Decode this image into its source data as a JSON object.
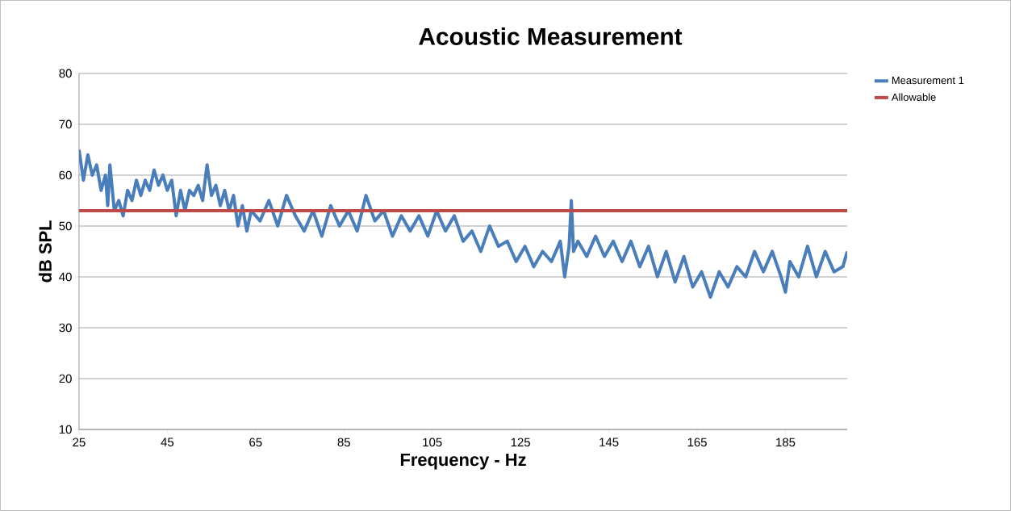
{
  "chart_data": {
    "type": "line",
    "title": "Acoustic Measurement",
    "xlabel": "Frequency - Hz",
    "ylabel": "dB SPL",
    "xlim": [
      25,
      199
    ],
    "xticks": [
      25,
      45,
      65,
      85,
      105,
      125,
      145,
      165,
      185
    ],
    "ylim": [
      10,
      80
    ],
    "yticks": [
      10,
      20,
      30,
      40,
      50,
      60,
      70,
      80
    ],
    "grid": "y",
    "legend": "top right",
    "marker": "none",
    "line_style": "solid",
    "series": [
      {
        "name": "Measurement 1",
        "color": "#4a7ebb",
        "x": [
          25,
          26,
          27,
          28,
          29,
          30,
          31,
          31.5,
          32,
          33,
          34,
          35,
          36,
          37,
          38,
          39,
          40,
          41,
          42,
          43,
          44,
          45,
          46,
          47,
          48,
          49,
          50,
          51,
          52,
          53,
          54,
          55,
          56,
          57,
          58,
          59,
          60,
          61,
          62,
          63,
          64,
          66,
          68,
          70,
          72,
          74,
          76,
          78,
          80,
          82,
          84,
          86,
          88,
          90,
          92,
          94,
          96,
          98,
          100,
          102,
          104,
          106,
          108,
          110,
          112,
          114,
          116,
          118,
          120,
          122,
          124,
          126,
          128,
          130,
          132,
          134,
          135,
          136,
          136.5,
          137,
          138,
          140,
          142,
          144,
          146,
          148,
          150,
          152,
          154,
          156,
          158,
          160,
          162,
          164,
          166,
          168,
          170,
          172,
          174,
          176,
          178,
          180,
          182,
          184,
          185,
          186,
          188,
          190,
          192,
          194,
          196,
          198,
          199
        ],
        "values": [
          65,
          59,
          64,
          60,
          62,
          57,
          60,
          54,
          62,
          53,
          55,
          52,
          57,
          55,
          59,
          56,
          59,
          57,
          61,
          58,
          60,
          57,
          59,
          52,
          57,
          53,
          57,
          56,
          58,
          55,
          62,
          56,
          58,
          54,
          57,
          53,
          56,
          50,
          54,
          49,
          53,
          51,
          55,
          50,
          56,
          52,
          49,
          53,
          48,
          54,
          50,
          53,
          49,
          56,
          51,
          53,
          48,
          52,
          49,
          52,
          48,
          53,
          49,
          52,
          47,
          49,
          45,
          50,
          46,
          47,
          43,
          46,
          42,
          45,
          43,
          47,
          40,
          46,
          55,
          45,
          47,
          44,
          48,
          44,
          47,
          43,
          47,
          42,
          46,
          40,
          45,
          39,
          44,
          38,
          41,
          36,
          41,
          38,
          42,
          40,
          45,
          41,
          45,
          40,
          37,
          43,
          40,
          46,
          40,
          45,
          41,
          42,
          45
        ]
      },
      {
        "name": "Allowable",
        "color": "#be4b48",
        "x": [
          25,
          199
        ],
        "values": [
          53,
          53
        ]
      }
    ]
  }
}
